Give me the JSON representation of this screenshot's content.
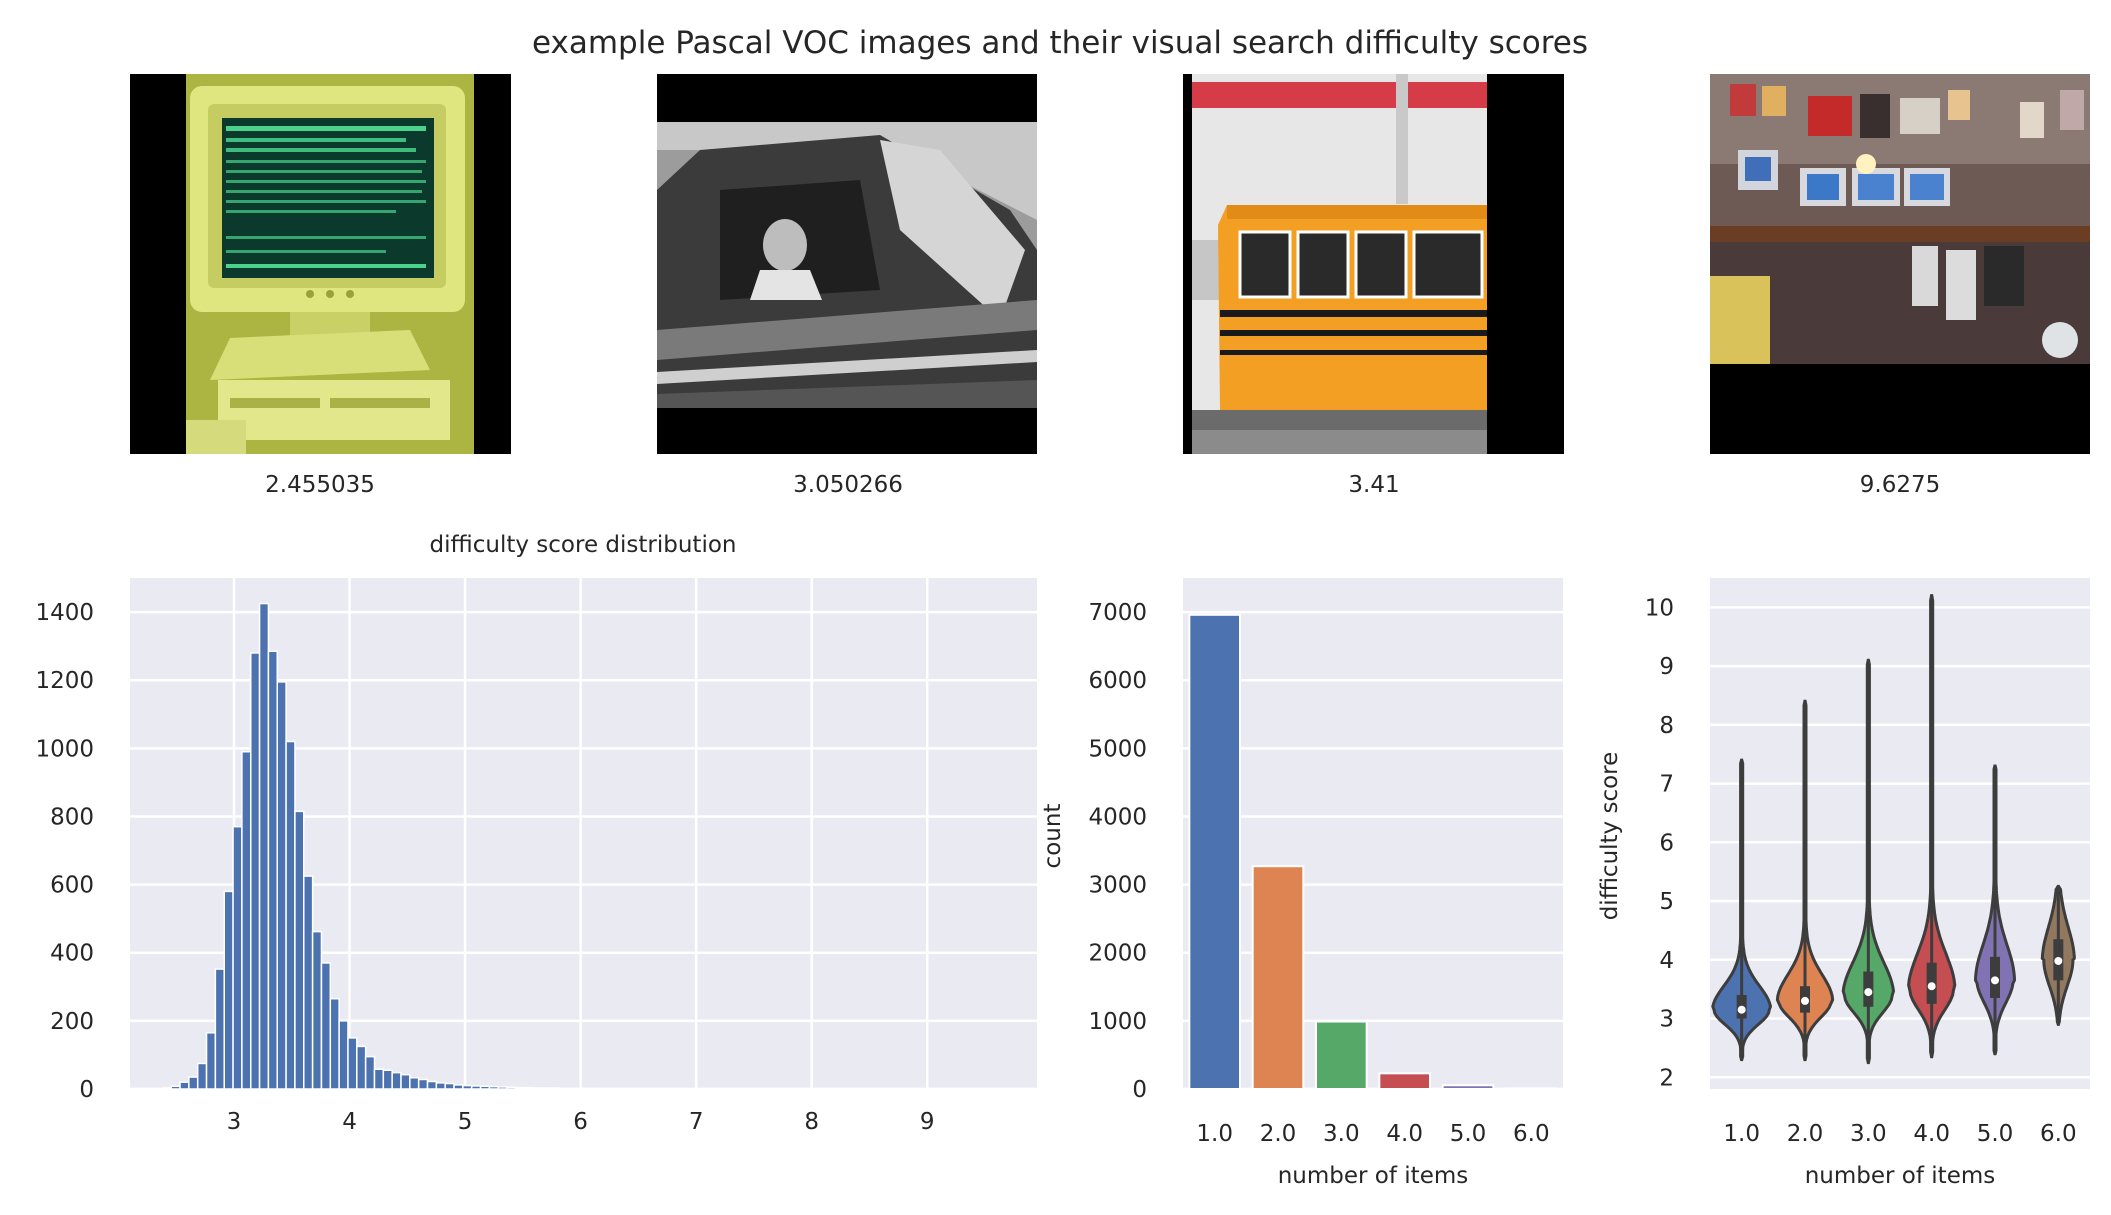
{
  "figure": {
    "title": "example Pascal VOC images and their visual search difficulty scores"
  },
  "images": [
    {
      "caption": "2.455035",
      "subject": "computer-monitor-photo"
    },
    {
      "caption": "3.050266",
      "subject": "girl-in-car-photo"
    },
    {
      "caption": "3.41",
      "subject": "school-bus-photo"
    },
    {
      "caption": "9.6275",
      "subject": "cluttered-room-photo"
    }
  ],
  "colors": {
    "axes_bg": "#eaeaf2",
    "grid": "#ffffff",
    "hist_bar": "#4c72b0",
    "bar_palette": [
      "#4c72b0",
      "#dd8452",
      "#55a868",
      "#c44e52",
      "#8172b3",
      "#937860"
    ],
    "violin_outline": "#3d3d3d"
  },
  "chart_data": [
    {
      "type": "bar",
      "subtype": "histogram",
      "title": "difficulty score distribution",
      "xlabel": "",
      "ylabel": "",
      "xlim": [
        2.1,
        9.95
      ],
      "ylim": [
        0,
        1500
      ],
      "xticks": [
        3,
        4,
        5,
        6,
        7,
        8,
        9
      ],
      "yticks": [
        0,
        200,
        400,
        600,
        800,
        1000,
        1200,
        1400
      ],
      "bin_width": 0.0765,
      "bin_start": 2.38,
      "values": [
        3,
        8,
        20,
        35,
        75,
        165,
        352,
        580,
        770,
        990,
        1280,
        1425,
        1285,
        1195,
        1020,
        815,
        625,
        462,
        370,
        265,
        200,
        150,
        125,
        95,
        58,
        55,
        48,
        42,
        33,
        28,
        22,
        18,
        16,
        12,
        10,
        9,
        8,
        7,
        6,
        5,
        4,
        4,
        3,
        3,
        3,
        2,
        2,
        2,
        2,
        2,
        1,
        1,
        1,
        1,
        1,
        1,
        1,
        1,
        1,
        1,
        1,
        1,
        1,
        1,
        1,
        1,
        1,
        1,
        1,
        1,
        1,
        1,
        1,
        1,
        1,
        1,
        1,
        1,
        1,
        1,
        1,
        1,
        1,
        1,
        1,
        1,
        1,
        1,
        1,
        1
      ],
      "grid": true
    },
    {
      "type": "bar",
      "title": "",
      "xlabel": "number of items",
      "ylabel": "count",
      "categories": [
        "1.0",
        "2.0",
        "3.0",
        "4.0",
        "5.0",
        "6.0"
      ],
      "values": [
        6960,
        3270,
        990,
        230,
        55,
        10
      ],
      "ylim": [
        0,
        7500
      ],
      "yticks": [
        0,
        1000,
        2000,
        3000,
        4000,
        5000,
        6000,
        7000
      ],
      "grid": true
    },
    {
      "type": "violin",
      "title": "",
      "xlabel": "number of items",
      "ylabel": "difficulty score",
      "categories": [
        "1.0",
        "2.0",
        "3.0",
        "4.0",
        "5.0",
        "6.0"
      ],
      "ylim": [
        1.8,
        10.5
      ],
      "yticks": [
        2,
        3,
        4,
        5,
        6,
        7,
        8,
        9,
        10
      ],
      "series": [
        {
          "min": 2.3,
          "max": 7.4,
          "median": 3.15,
          "q1": 3.0,
          "q3": 3.4,
          "peak": 3.15,
          "sigma_low": 0.25,
          "sigma_high": 0.4,
          "mode_width": 0.95
        },
        {
          "min": 2.3,
          "max": 8.4,
          "median": 3.3,
          "q1": 3.1,
          "q3": 3.55,
          "peak": 3.3,
          "sigma_low": 0.28,
          "sigma_high": 0.45,
          "mode_width": 0.9
        },
        {
          "min": 2.25,
          "max": 9.1,
          "median": 3.45,
          "q1": 3.2,
          "q3": 3.8,
          "peak": 3.4,
          "sigma_low": 0.3,
          "sigma_high": 0.55,
          "mode_width": 0.82
        },
        {
          "min": 2.35,
          "max": 10.2,
          "median": 3.55,
          "q1": 3.25,
          "q3": 3.95,
          "peak": 3.5,
          "sigma_low": 0.35,
          "sigma_high": 0.6,
          "mode_width": 0.75
        },
        {
          "min": 2.4,
          "max": 7.3,
          "median": 3.65,
          "q1": 3.35,
          "q3": 4.05,
          "peak": 3.65,
          "sigma_low": 0.38,
          "sigma_high": 0.6,
          "mode_width": 0.62
        },
        {
          "min": 2.9,
          "max": 5.25,
          "median": 3.98,
          "q1": 3.65,
          "q3": 4.35,
          "peak": 4.0,
          "sigma_low": 0.45,
          "sigma_high": 0.55,
          "mode_width": 0.5
        }
      ],
      "grid": true
    }
  ]
}
